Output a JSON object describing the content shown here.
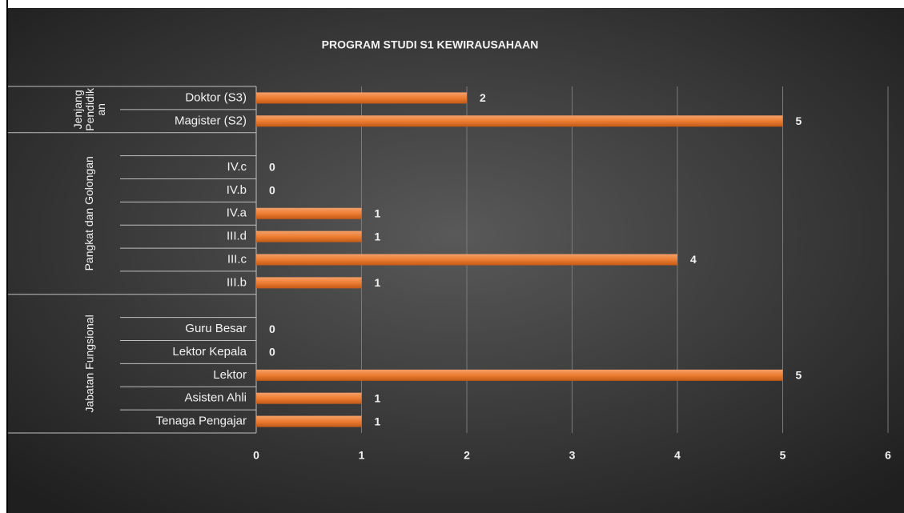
{
  "chart_data": {
    "type": "bar",
    "orientation": "horizontal",
    "title": "PROGRAM STUDI S1 KEWIRAUSAHAAN",
    "groups": [
      {
        "name": "Jenjang Pendidikan",
        "categories": [
          "Doktor (S3)",
          "Magister (S2)"
        ],
        "values": [
          2,
          5
        ]
      },
      {
        "name": "Pangkat dan Golongan",
        "categories": [
          null,
          "IV.c",
          "IV.b",
          "IV.a",
          "III.d",
          "III.c",
          "III.b"
        ],
        "values": [
          null,
          0,
          0,
          1,
          1,
          4,
          1
        ]
      },
      {
        "name": "Jabatan Fungsional",
        "categories": [
          null,
          "Guru Besar",
          "Lektor Kepala",
          "Lektor",
          "Asisten Ahli",
          "Tenaga Pengajar"
        ],
        "values": [
          null,
          0,
          0,
          5,
          1,
          1
        ]
      }
    ],
    "color": "#ed7d31",
    "xlim": [
      0,
      6
    ],
    "xticks": [
      0,
      1,
      2,
      3,
      4,
      5,
      6
    ],
    "grid": true
  }
}
